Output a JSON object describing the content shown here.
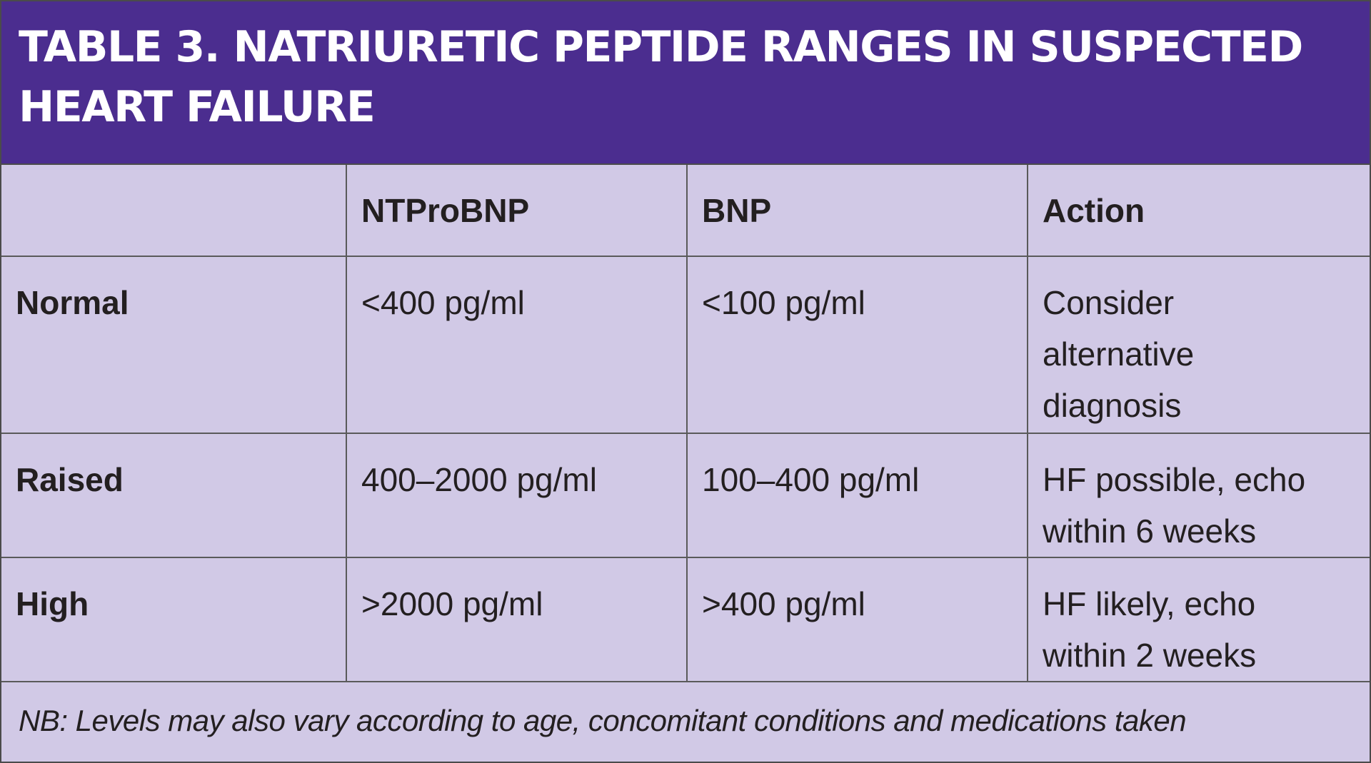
{
  "title": {
    "line1": "TABLE 3. NATRIURETIC PEPTIDE RANGES IN SUSPECTED",
    "line2": "HEART FAILURE"
  },
  "table": {
    "headers": [
      "",
      "NTProBNP",
      "BNP",
      "Action"
    ],
    "rows": [
      {
        "label": "Normal",
        "ntprobnp": "<400 pg/ml",
        "bnp": "<100 pg/ml",
        "action": [
          "Consider",
          "alternative",
          "diagnosis"
        ]
      },
      {
        "label": "Raised",
        "ntprobnp": "400–2000 pg/ml",
        "bnp": "100–400 pg/ml",
        "action": [
          "HF possible, echo",
          "within 6 weeks"
        ]
      },
      {
        "label": "High",
        "ntprobnp": ">2000 pg/ml",
        "bnp": ">400 pg/ml",
        "action": [
          "HF likely, echo",
          "within 2 weeks"
        ]
      }
    ],
    "footnote": "NB: Levels may also vary according to age, concomitant conditions and medications taken"
  },
  "colors": {
    "title_background": "#4b2d8f",
    "title_text": "#ffffff",
    "table_background": "#d1c9e6",
    "text": "#231f20",
    "rule": "#5a5a5a"
  }
}
